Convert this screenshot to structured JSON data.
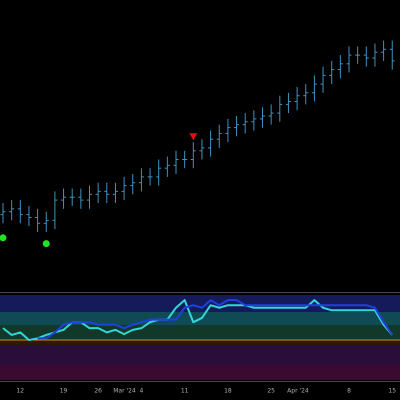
{
  "chart_data": {
    "type": "ohlc",
    "categories": [
      null,
      null,
      "12",
      null,
      null,
      null,
      null,
      "19",
      null,
      null,
      null,
      "26",
      null,
      null,
      null,
      "Mar '24",
      "4",
      null,
      null,
      null,
      null,
      "11",
      null,
      null,
      null,
      null,
      "18",
      null,
      null,
      null,
      null,
      "25",
      null,
      null,
      null,
      "Apr '24",
      null,
      null,
      null,
      null,
      "8",
      null,
      null,
      null,
      null,
      "15"
    ],
    "open": [
      26,
      27,
      28,
      26,
      25,
      23,
      24,
      31,
      32,
      32,
      31,
      33,
      34,
      33,
      34,
      36,
      37,
      39,
      39,
      42,
      43,
      45,
      45,
      48,
      49,
      52,
      54,
      56,
      57,
      58,
      59,
      60,
      61,
      64,
      65,
      67,
      68,
      71,
      74,
      76,
      78,
      81,
      81,
      80,
      82,
      83
    ],
    "high": [
      30,
      31,
      31,
      29,
      28,
      27,
      34,
      35,
      35,
      35,
      36,
      37,
      37,
      37,
      39,
      40,
      42,
      42,
      45,
      46,
      48,
      48,
      51,
      52,
      55,
      57,
      59,
      60,
      61,
      62,
      63,
      64,
      67,
      68,
      70,
      71,
      74,
      77,
      79,
      81,
      84,
      84,
      84,
      85,
      86,
      86
    ],
    "low": [
      23,
      24,
      23,
      22,
      20,
      20,
      21,
      28,
      29,
      28,
      28,
      30,
      30,
      30,
      31,
      33,
      34,
      36,
      36,
      39,
      40,
      42,
      42,
      45,
      46,
      49,
      51,
      53,
      54,
      55,
      56,
      57,
      58,
      61,
      62,
      64,
      65,
      68,
      71,
      73,
      75,
      78,
      77,
      77,
      79,
      76
    ],
    "close": [
      27,
      28,
      26,
      25,
      23,
      24,
      31,
      32,
      32,
      31,
      33,
      34,
      33,
      34,
      36,
      37,
      39,
      39,
      42,
      43,
      45,
      45,
      48,
      49,
      52,
      54,
      56,
      57,
      58,
      59,
      60,
      61,
      64,
      65,
      67,
      68,
      71,
      74,
      76,
      78,
      81,
      81,
      80,
      82,
      83,
      79
    ],
    "color": "#3f93c0",
    "ylim": [
      0,
      100
    ],
    "buy_markers": {
      "indices": [
        0,
        5
      ],
      "values": [
        18,
        16
      ],
      "color": "#22e022"
    },
    "sell_markers": {
      "indices": [
        22
      ],
      "values": [
        53
      ],
      "color": "#e01010"
    },
    "indicator": {
      "ylim": [
        0,
        100
      ],
      "series": [
        {
          "color": "#33d6d6",
          "values": [
            61,
            53,
            56,
            47,
            49,
            53,
            56,
            59,
            68,
            68,
            61,
            61,
            56,
            59,
            54,
            59,
            61,
            68,
            71,
            71,
            85,
            94,
            68,
            73,
            88,
            85,
            88,
            88,
            88,
            85,
            85,
            85,
            85,
            85,
            85,
            85,
            94,
            85,
            82,
            82,
            82,
            82,
            82,
            82,
            65,
            53
          ]
        },
        {
          "color": "#1f3fe0",
          "values": [
            null,
            null,
            null,
            null,
            49,
            49,
            56,
            65,
            68,
            68,
            68,
            65,
            65,
            65,
            61,
            65,
            68,
            71,
            71,
            71,
            71,
            85,
            88,
            85,
            94,
            88,
            94,
            94,
            88,
            88,
            88,
            88,
            88,
            88,
            88,
            88,
            88,
            88,
            88,
            88,
            88,
            88,
            88,
            85,
            68,
            53
          ]
        }
      ]
    }
  }
}
